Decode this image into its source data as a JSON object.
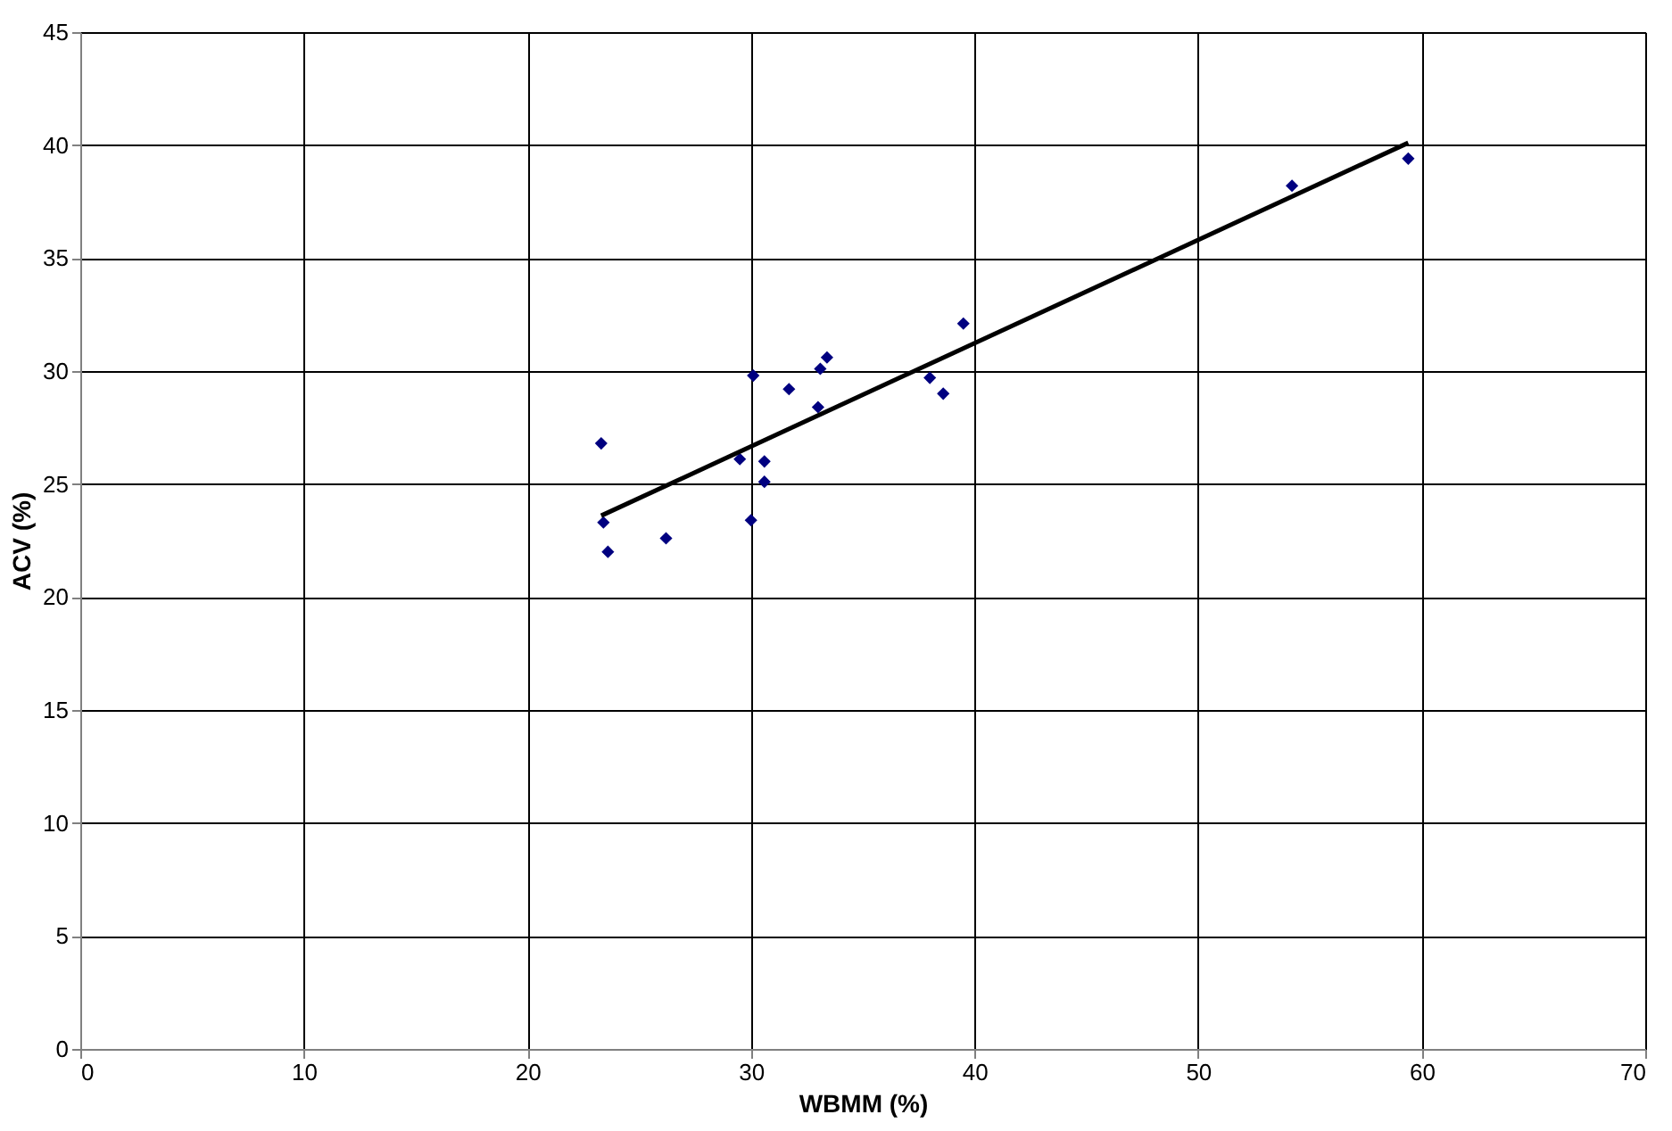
{
  "chart_data": {
    "type": "scatter",
    "xlabel": "WBMM (%)",
    "ylabel": "ACV (%)",
    "xlim": [
      0,
      70
    ],
    "xticks": [
      0,
      10,
      20,
      30,
      40,
      50,
      60,
      70
    ],
    "ylim": [
      0,
      45
    ],
    "yticks": [
      0,
      5,
      10,
      15,
      20,
      25,
      30,
      35,
      40,
      45
    ],
    "grid": true,
    "legend": false,
    "series": [
      {
        "marker": "diamond",
        "color": "#000080",
        "x": [
          23.3,
          23.4,
          23.6,
          26.2,
          29.5,
          30.0,
          30.1,
          30.6,
          30.6,
          31.7,
          33.0,
          33.1,
          33.4,
          38.0,
          38.6,
          39.5,
          54.2,
          59.4
        ],
        "values": [
          26.8,
          23.3,
          22.0,
          22.6,
          26.1,
          23.4,
          29.8,
          26.0,
          25.1,
          29.2,
          28.4,
          30.1,
          30.6,
          29.7,
          29.0,
          32.1,
          38.2,
          39.4
        ]
      },
      {
        "type": "line",
        "marker": "none",
        "line_style": "solid",
        "color": "#000000",
        "x": [
          23.3,
          59.4
        ],
        "values": [
          23.6,
          40.1
        ]
      }
    ]
  }
}
